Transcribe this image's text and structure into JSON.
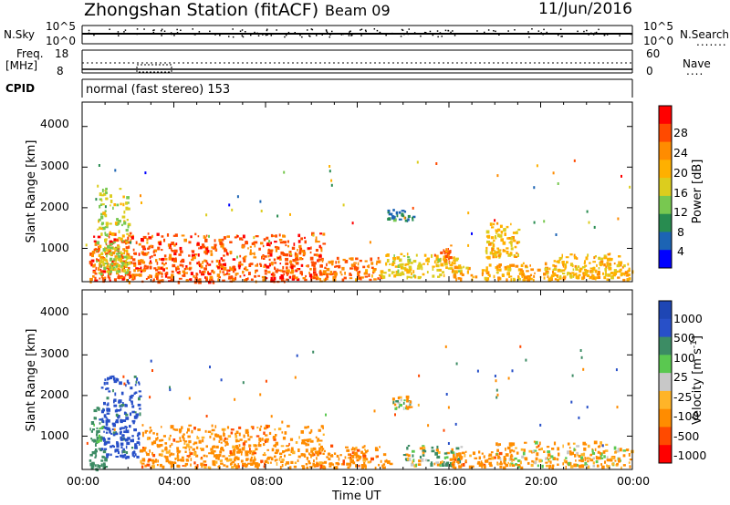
{
  "header": {
    "station": "Zhongshan Station (fitACF)",
    "beam": "Beam 09",
    "date": "11/Jun/2016"
  },
  "panel_noise": {
    "left_label": "N.Sky",
    "right_label": "N.Search",
    "left_ticks": [
      "10^5",
      "10^0"
    ],
    "right_ticks": [
      "10^5",
      "10^0"
    ]
  },
  "panel_freq": {
    "left_label_line1": "Freq.",
    "left_label_line2": "[MHz]",
    "right_label": "Nave",
    "left_ticks": [
      "18",
      "8"
    ],
    "right_ticks": [
      "60",
      "0"
    ]
  },
  "cpid": {
    "label": "CPID",
    "text": "normal (fast stereo) 153"
  },
  "panel_power": {
    "ylabel": "Slant Range [km]",
    "yticks": [
      "4000",
      "3000",
      "2000",
      "1000"
    ],
    "colorbar_title": "Power [dB]",
    "colorbar_ticks": [
      "28",
      "24",
      "20",
      "16",
      "12",
      "8",
      "4"
    ],
    "colorbar_colors": [
      "#ff0000",
      "#ff4a00",
      "#ff8c00",
      "#ffb000",
      "#dccd1e",
      "#78c850",
      "#288c50",
      "#1c64b4",
      "#0000ff"
    ]
  },
  "panel_velocity": {
    "ylabel": "Slant Range [km]",
    "yticks": [
      "4000",
      "3000",
      "2000",
      "1000"
    ],
    "colorbar_title": "Velocity [m s",
    "colorbar_title_sup": "-1",
    "colorbar_title_end": "]",
    "colorbar_ticks": [
      "1000",
      "500",
      "100",
      "25",
      "-25",
      "-100",
      "-500",
      "-1000"
    ],
    "colorbar_colors": [
      "#1e46b4",
      "#2850c8",
      "#3c8c64",
      "#5ac850",
      "#c8c8c8",
      "#ffb428",
      "#ff8c00",
      "#ff4a00",
      "#ff0000"
    ]
  },
  "xaxis": {
    "ticks": [
      "00:00",
      "04:00",
      "08:00",
      "12:00",
      "16:00",
      "20:00",
      "00:00"
    ],
    "label": "Time UT"
  },
  "chart_data": [
    {
      "type": "heatmap",
      "title": "Zhongshan Station (fitACF) Beam 09 11/Jun/2016",
      "quantity": "Power",
      "unit": "dB",
      "xlabel": "Time UT",
      "ylabel": "Slant Range [km]",
      "xlim": [
        "00:00",
        "24:00"
      ],
      "ylim": [
        180,
        4600
      ],
      "color_range": [
        0,
        30
      ],
      "colorbar_ticks": [
        4,
        8,
        12,
        16,
        20,
        24,
        28
      ],
      "regions": [
        {
          "t_start": 0.3,
          "t_end": 10.5,
          "range_min": 200,
          "range_max": 1400,
          "value": 26
        },
        {
          "t_start": 0.6,
          "t_end": 2.0,
          "range_min": 400,
          "range_max": 2500,
          "value": 14
        },
        {
          "t_start": 10.0,
          "t_end": 13.0,
          "range_min": 250,
          "range_max": 800,
          "value": 24
        },
        {
          "t_start": 13.0,
          "t_end": 16.5,
          "range_min": 300,
          "range_max": 900,
          "value": 16
        },
        {
          "t_start": 13.3,
          "t_end": 14.5,
          "range_min": 1700,
          "range_max": 2000,
          "value": 6
        },
        {
          "t_start": 15.6,
          "t_end": 16.1,
          "range_min": 700,
          "range_max": 1100,
          "value": 24
        },
        {
          "t_start": 16.0,
          "t_end": 24.0,
          "range_min": 250,
          "range_max": 700,
          "value": 20
        },
        {
          "t_start": 17.5,
          "t_end": 19.0,
          "range_min": 800,
          "range_max": 1700,
          "value": 18
        },
        {
          "t_start": 20.5,
          "t_end": 23.5,
          "range_min": 300,
          "range_max": 900,
          "value": 18
        }
      ]
    },
    {
      "type": "heatmap",
      "title": "Zhongshan Station (fitACF) Beam 09 11/Jun/2016",
      "quantity": "Velocity",
      "unit": "m s^-1",
      "xlabel": "Time UT",
      "ylabel": "Slant Range [km]",
      "xlim": [
        "00:00",
        "24:00"
      ],
      "ylim": [
        180,
        4600
      ],
      "color_range": [
        -1000,
        1000
      ],
      "colorbar_ticks": [
        1000,
        500,
        100,
        25,
        -25,
        -100,
        -500,
        -1000
      ],
      "regions": [
        {
          "t_start": 0.3,
          "t_end": 1.0,
          "range_min": 200,
          "range_max": 1800,
          "value": 300
        },
        {
          "t_start": 0.8,
          "t_end": 2.5,
          "range_min": 500,
          "range_max": 2500,
          "value": 700
        },
        {
          "t_start": 2.5,
          "t_end": 10.5,
          "range_min": 250,
          "range_max": 1300,
          "value": -300
        },
        {
          "t_start": 10.0,
          "t_end": 13.5,
          "range_min": 250,
          "range_max": 800,
          "value": -300
        },
        {
          "t_start": 13.5,
          "t_end": 14.3,
          "range_min": 1700,
          "range_max": 2000,
          "value": 0
        },
        {
          "t_start": 14.0,
          "t_end": 16.5,
          "range_min": 300,
          "range_max": 800,
          "value": 60
        },
        {
          "t_start": 16.0,
          "t_end": 18.5,
          "range_min": 250,
          "range_max": 700,
          "value": -300
        },
        {
          "t_start": 18.0,
          "t_end": 24.0,
          "range_min": 250,
          "range_max": 900,
          "value": -150
        }
      ]
    }
  ]
}
